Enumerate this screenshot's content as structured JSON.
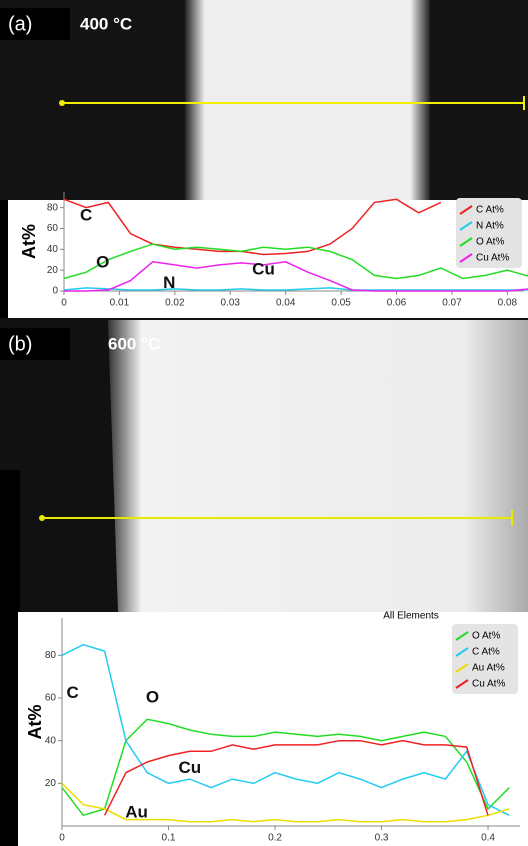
{
  "panels": [
    {
      "label": "(a)",
      "temperature": "400 °C"
    },
    {
      "label": "(b)",
      "temperature": "600 °C"
    }
  ],
  "chart_data": [
    {
      "type": "line",
      "ylabel": "At%",
      "x": [
        0,
        0.004,
        0.008,
        0.012,
        0.016,
        0.02,
        0.024,
        0.028,
        0.032,
        0.036,
        0.04,
        0.044,
        0.048,
        0.052,
        0.056,
        0.06,
        0.064,
        0.068,
        0.072,
        0.076,
        0.08,
        0.084
      ],
      "xlim": [
        0,
        0.083
      ],
      "xticks": [
        0,
        0.01,
        0.02,
        0.03,
        0.04,
        0.05,
        0.06,
        0.07,
        0.08
      ],
      "ylim": [
        0,
        95
      ],
      "yticks": [
        0,
        20,
        40,
        60,
        80
      ],
      "series": [
        {
          "name": "C At%",
          "color": "#ee2222",
          "values": [
            88,
            80,
            85,
            55,
            45,
            42,
            40,
            38,
            38,
            35,
            36,
            38,
            45,
            60,
            85,
            88,
            75,
            85,
            null,
            null,
            null,
            null
          ]
        },
        {
          "name": "N At%",
          "color": "#22ccee",
          "values": [
            1,
            3,
            2,
            1,
            1,
            2,
            1,
            1,
            2,
            1,
            1,
            2,
            3,
            1,
            1,
            1,
            1,
            1,
            1,
            1,
            1,
            1
          ]
        },
        {
          "name": "O At%",
          "color": "#22dd22",
          "values": [
            12,
            18,
            30,
            38,
            45,
            40,
            42,
            40,
            38,
            42,
            40,
            42,
            38,
            30,
            15,
            12,
            15,
            22,
            12,
            15,
            20,
            14
          ]
        },
        {
          "name": "Cu At%",
          "color": "#ee22ee",
          "values": [
            0,
            0,
            1,
            10,
            28,
            25,
            22,
            25,
            27,
            25,
            28,
            18,
            10,
            1,
            0,
            0,
            0,
            0,
            0,
            0,
            0,
            2
          ]
        }
      ],
      "annotations": [
        {
          "text": "C",
          "x": 0.004,
          "y": 72
        },
        {
          "text": "O",
          "x": 0.007,
          "y": 27
        },
        {
          "text": "N",
          "x": 0.019,
          "y": 7
        },
        {
          "text": "Cu",
          "x": 0.036,
          "y": 20
        }
      ]
    },
    {
      "type": "line",
      "title": "All Elements",
      "ylabel": "At%",
      "x": [
        0,
        0.02,
        0.04,
        0.06,
        0.08,
        0.1,
        0.12,
        0.14,
        0.16,
        0.18,
        0.2,
        0.22,
        0.24,
        0.26,
        0.28,
        0.3,
        0.32,
        0.34,
        0.36,
        0.38,
        0.4,
        0.42
      ],
      "xlim": [
        0,
        0.43
      ],
      "xticks": [
        0,
        0.1,
        0.2,
        0.3,
        0.4
      ],
      "ylim": [
        0,
        97.5
      ],
      "yticks": [
        20,
        40,
        60,
        80
      ],
      "series": [
        {
          "name": "O At%",
          "color": "#22dd22",
          "values": [
            18,
            5,
            8,
            40,
            50,
            48,
            45,
            43,
            42,
            42,
            44,
            43,
            42,
            43,
            42,
            40,
            42,
            44,
            42,
            30,
            8,
            18
          ]
        },
        {
          "name": "C At%",
          "color": "#22ccee",
          "values": [
            80,
            85,
            82,
            40,
            25,
            20,
            22,
            18,
            22,
            20,
            25,
            22,
            20,
            25,
            22,
            18,
            22,
            25,
            22,
            35,
            10,
            5
          ]
        },
        {
          "name": "Au At%",
          "color": "#eedd00",
          "values": [
            20,
            10,
            8,
            3,
            3,
            3,
            2,
            2,
            3,
            2,
            3,
            2,
            2,
            3,
            2,
            2,
            3,
            2,
            2,
            3,
            5,
            8
          ]
        },
        {
          "name": "Cu At%",
          "color": "#ee2222",
          "values": [
            null,
            null,
            5,
            25,
            30,
            33,
            35,
            35,
            38,
            36,
            38,
            38,
            38,
            40,
            40,
            38,
            40,
            38,
            38,
            37,
            5,
            null
          ]
        }
      ],
      "annotations": [
        {
          "text": "C",
          "x": 0.01,
          "y": 62
        },
        {
          "text": "O",
          "x": 0.085,
          "y": 60
        },
        {
          "text": "Cu",
          "x": 0.12,
          "y": 27
        },
        {
          "text": "Au",
          "x": 0.07,
          "y": 6
        }
      ]
    }
  ]
}
